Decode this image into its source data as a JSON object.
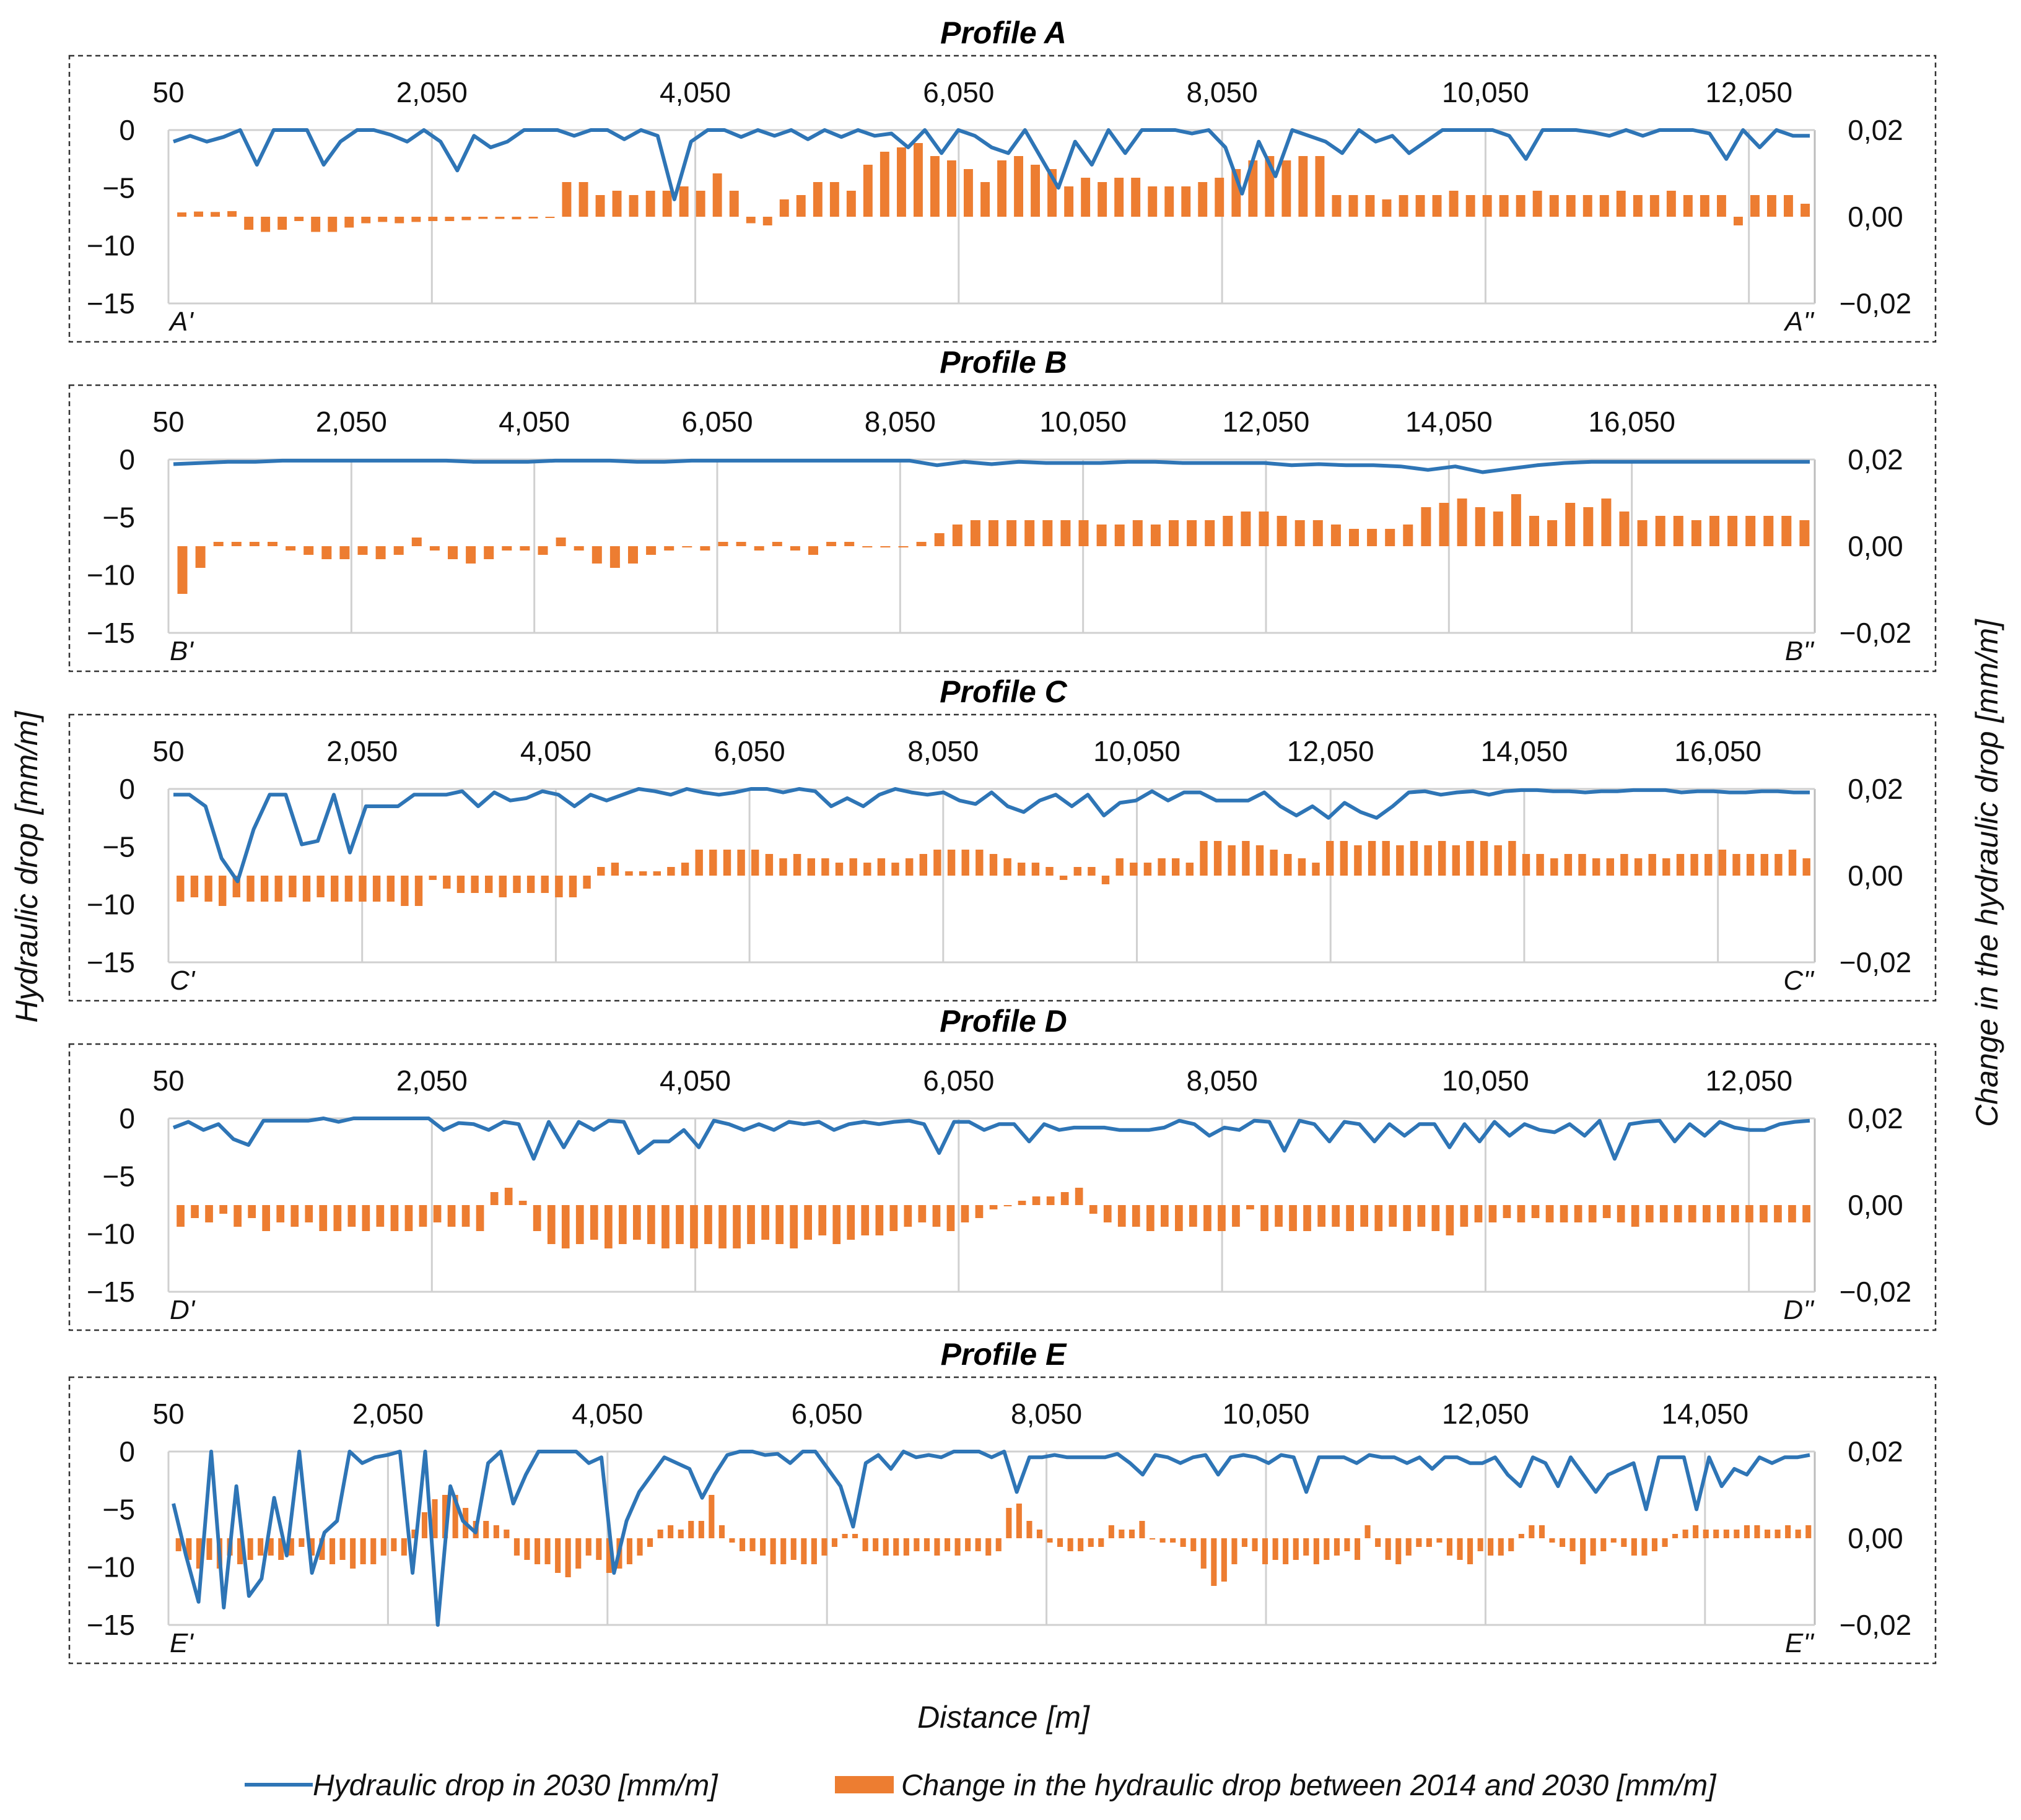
{
  "figure": {
    "left_axis_title": "Hydraulic drop [mm/m]",
    "right_axis_title": "Change in the hydraulic drop [mm/m]",
    "x_axis_title": "Distance [m]",
    "legend": [
      {
        "label": "Hydraulic drop in 2030 [mm/m]",
        "kind": "line",
        "color": "#2e75b6"
      },
      {
        "label": "Change in the hydraulic drop between 2014 and 2030 [mm/m]",
        "kind": "bar",
        "color": "#ed7d31"
      }
    ]
  },
  "chart_data": [
    {
      "type": "line+bar",
      "title": "Profile A",
      "start_label": "A'",
      "end_label": "A''",
      "xlim": [
        50,
        12550
      ],
      "xticks": [
        "50",
        "2,050",
        "4,050",
        "6,050",
        "8,050",
        "10,050",
        "12,050"
      ],
      "y_left": {
        "range": [
          -15,
          0
        ],
        "ticks": [
          "0",
          "-5",
          "-10",
          "-15"
        ]
      },
      "y_right": {
        "range": [
          -0.02,
          0.02
        ],
        "ticks": [
          "0,02",
          "0,00",
          "-0,02"
        ]
      },
      "line_series": [
        -1,
        -0.5,
        -1,
        -0.6,
        0,
        -3,
        0,
        0,
        0,
        -3,
        -1,
        0,
        0,
        -0.4,
        -1,
        0,
        -1,
        -3.5,
        -0.5,
        -1.5,
        -1,
        0,
        0,
        0,
        -0.5,
        0,
        0,
        -0.8,
        0,
        -0.5,
        -6,
        -1,
        0,
        0,
        -0.6,
        0,
        -0.5,
        0,
        -0.8,
        0,
        -0.6,
        0,
        -0.5,
        -0.3,
        -1.5,
        0,
        -2,
        0,
        -0.5,
        -1.5,
        -2,
        0,
        -2.5,
        -5,
        -1,
        -3,
        0,
        -2,
        0,
        0,
        0,
        -0.3,
        0,
        -1.5,
        -5.5,
        -1,
        -4,
        0,
        -0.5,
        -1,
        -2,
        0,
        -1,
        -0.5,
        -2,
        -1,
        0,
        0,
        0,
        0,
        -0.5,
        -2.5,
        0,
        0,
        0,
        -0.2,
        -0.5,
        0,
        -0.5,
        0,
        0,
        0,
        -0.3,
        -2.5,
        0,
        -1.5,
        0,
        -0.5,
        -0.5
      ],
      "bar_series": [
        0.001,
        0.0012,
        0.0011,
        0.0013,
        -0.003,
        -0.0035,
        -0.003,
        -0.001,
        -0.0035,
        -0.0035,
        -0.0025,
        -0.0015,
        -0.0012,
        -0.0015,
        -0.0012,
        -0.001,
        -0.001,
        -0.0008,
        -0.0005,
        -0.0005,
        -0.0006,
        -0.0004,
        -0.0002,
        0.008,
        0.008,
        0.005,
        0.006,
        0.005,
        0.006,
        0.006,
        0.007,
        0.006,
        0.01,
        0.006,
        -0.0015,
        -0.002,
        0.004,
        0.005,
        0.008,
        0.008,
        0.006,
        0.012,
        0.015,
        0.016,
        0.017,
        0.014,
        0.013,
        0.011,
        0.008,
        0.013,
        0.014,
        0.012,
        0.011,
        0.007,
        0.009,
        0.008,
        0.009,
        0.009,
        0.007,
        0.007,
        0.007,
        0.008,
        0.009,
        0.011,
        0.013,
        0.014,
        0.013,
        0.014,
        0.014,
        0.005,
        0.005,
        0.005,
        0.004,
        0.005,
        0.005,
        0.005,
        0.006,
        0.005,
        0.005,
        0.005,
        0.005,
        0.006,
        0.005,
        0.005,
        0.005,
        0.005,
        0.006,
        0.005,
        0.005,
        0.006,
        0.005,
        0.005,
        0.005,
        -0.002,
        0.005,
        0.005,
        0.005,
        0.003
      ]
    },
    {
      "type": "line+bar",
      "title": "Profile B",
      "start_label": "B'",
      "end_label": "B''",
      "xlim": [
        50,
        18050
      ],
      "xticks": [
        "50",
        "2,050",
        "4,050",
        "6,050",
        "8,050",
        "10,050",
        "12,050",
        "14,050",
        "16,050"
      ],
      "y_left": {
        "range": [
          -15,
          0
        ],
        "ticks": [
          "0",
          "-5",
          "-10",
          "-15"
        ]
      },
      "y_right": {
        "range": [
          -0.02,
          0.02
        ],
        "ticks": [
          "0,02",
          "0,00",
          "-0,02"
        ]
      },
      "line_series": [
        -0.4,
        -0.3,
        -0.2,
        -0.2,
        -0.1,
        -0.1,
        -0.1,
        -0.1,
        -0.1,
        -0.1,
        -0.1,
        -0.2,
        -0.2,
        -0.2,
        -0.1,
        -0.1,
        -0.1,
        -0.2,
        -0.2,
        -0.1,
        -0.1,
        -0.1,
        -0.1,
        -0.1,
        -0.1,
        -0.1,
        -0.1,
        -0.1,
        -0.5,
        -0.2,
        -0.4,
        -0.2,
        -0.3,
        -0.3,
        -0.3,
        -0.2,
        -0.2,
        -0.3,
        -0.3,
        -0.3,
        -0.3,
        -0.5,
        -0.4,
        -0.5,
        -0.5,
        -0.6,
        -0.9,
        -0.6,
        -1.1,
        -0.8,
        -0.5,
        -0.3,
        -0.2,
        -0.2,
        -0.2,
        -0.2,
        -0.2,
        -0.2,
        -0.2,
        -0.2,
        -0.2
      ],
      "bar_series": [
        -0.011,
        -0.005,
        0.001,
        0.001,
        0.001,
        0.001,
        -0.001,
        -0.002,
        -0.003,
        -0.003,
        -0.002,
        -0.003,
        -0.002,
        0.002,
        -0.001,
        -0.003,
        -0.004,
        -0.003,
        -0.001,
        -0.001,
        -0.002,
        0.002,
        -0.001,
        -0.004,
        -0.005,
        -0.004,
        -0.002,
        -0.001,
        0.0,
        -0.001,
        0.001,
        0.001,
        -0.001,
        0.001,
        -0.001,
        -0.002,
        0.001,
        0.001,
        0.0,
        0.0,
        0.0,
        0.001,
        0.003,
        0.005,
        0.006,
        0.006,
        0.006,
        0.006,
        0.006,
        0.006,
        0.006,
        0.005,
        0.005,
        0.006,
        0.005,
        0.006,
        0.006,
        0.006,
        0.007,
        0.008,
        0.008,
        0.007,
        0.006,
        0.006,
        0.005,
        0.004,
        0.004,
        0.004,
        0.005,
        0.009,
        0.01,
        0.011,
        0.009,
        0.008,
        0.012,
        0.007,
        0.006,
        0.01,
        0.009,
        0.011,
        0.008,
        0.006,
        0.007,
        0.007,
        0.006,
        0.007,
        0.007,
        0.007,
        0.007,
        0.007,
        0.006
      ]
    },
    {
      "type": "line+bar",
      "title": "Profile C",
      "start_label": "C'",
      "end_label": "C''",
      "xlim": [
        50,
        17050
      ],
      "xticks": [
        "50",
        "2,050",
        "4,050",
        "6,050",
        "8,050",
        "10,050",
        "12,050",
        "14,050",
        "16,050"
      ],
      "y_left": {
        "range": [
          -15,
          0
        ],
        "ticks": [
          "0",
          "-5",
          "-10",
          "-15"
        ]
      },
      "y_right": {
        "range": [
          -0.02,
          0.02
        ],
        "ticks": [
          "0,02",
          "0,00",
          "-0,02"
        ]
      },
      "line_series": [
        -0.5,
        -0.5,
        -1.5,
        -6,
        -8,
        -3.5,
        -0.5,
        -0.5,
        -4.8,
        -4.5,
        -0.5,
        -5.5,
        -1.5,
        -1.5,
        -1.5,
        -0.5,
        -0.5,
        -0.5,
        -0.2,
        -1.5,
        -0.3,
        -1,
        -0.8,
        -0.2,
        -0.5,
        -1.5,
        -0.5,
        -1,
        -0.5,
        0,
        -0.2,
        -0.5,
        0,
        -0.3,
        -0.5,
        -0.3,
        0,
        0,
        -0.3,
        0,
        -0.2,
        -1.5,
        -0.8,
        -1.5,
        -0.5,
        0,
        -0.3,
        -0.5,
        -0.3,
        -1,
        -1.3,
        -0.3,
        -1.5,
        -2,
        -1,
        -0.5,
        -1.5,
        -0.5,
        -2.3,
        -1.2,
        -1,
        -0.2,
        -1,
        -0.3,
        -0.3,
        -1,
        -1,
        -1,
        -0.3,
        -1.5,
        -2.3,
        -1.5,
        -2.5,
        -1.2,
        -2,
        -2.5,
        -1.5,
        -0.3,
        -0.2,
        -0.5,
        -0.3,
        -0.2,
        -0.5,
        -0.2,
        -0.1,
        -0.1,
        -0.2,
        -0.2,
        -0.3,
        -0.2,
        -0.2,
        -0.1,
        -0.1,
        -0.1,
        -0.3,
        -0.2,
        -0.2,
        -0.3,
        -0.3,
        -0.2,
        -0.2,
        -0.3,
        -0.3
      ],
      "bar_series": [
        -0.006,
        -0.005,
        -0.006,
        -0.007,
        -0.005,
        -0.006,
        -0.006,
        -0.006,
        -0.005,
        -0.006,
        -0.005,
        -0.006,
        -0.006,
        -0.006,
        -0.006,
        -0.006,
        -0.007,
        -0.007,
        -0.001,
        -0.003,
        -0.004,
        -0.004,
        -0.004,
        -0.005,
        -0.004,
        -0.004,
        -0.004,
        -0.005,
        -0.005,
        -0.003,
        0.002,
        0.003,
        0.001,
        0.001,
        0.001,
        0.002,
        0.003,
        0.006,
        0.006,
        0.006,
        0.006,
        0.006,
        0.005,
        0.004,
        0.005,
        0.004,
        0.004,
        0.003,
        0.004,
        0.003,
        0.004,
        0.003,
        0.004,
        0.005,
        0.006,
        0.006,
        0.006,
        0.006,
        0.005,
        0.004,
        0.003,
        0.003,
        0.002,
        -0.001,
        0.002,
        0.002,
        -0.002,
        0.004,
        0.003,
        0.003,
        0.004,
        0.004,
        0.003,
        0.008,
        0.008,
        0.007,
        0.008,
        0.007,
        0.006,
        0.005,
        0.004,
        0.003,
        0.008,
        0.008,
        0.007,
        0.008,
        0.008,
        0.007,
        0.008,
        0.007,
        0.008,
        0.007,
        0.008,
        0.008,
        0.007,
        0.008,
        0.005,
        0.005,
        0.004,
        0.005,
        0.005,
        0.004,
        0.004,
        0.005,
        0.004,
        0.005,
        0.004,
        0.005,
        0.005,
        0.005,
        0.006,
        0.005,
        0.005,
        0.005,
        0.005,
        0.006,
        0.004
      ]
    },
    {
      "type": "line+bar",
      "title": "Profile D",
      "start_label": "D'",
      "end_label": "D''",
      "xlim": [
        50,
        12550
      ],
      "xticks": [
        "50",
        "2,050",
        "4,050",
        "6,050",
        "8,050",
        "10,050",
        "12,050"
      ],
      "y_left": {
        "range": [
          -15,
          0
        ],
        "ticks": [
          "0",
          "-5",
          "-10",
          "-15"
        ]
      },
      "y_right": {
        "range": [
          -0.02,
          0.02
        ],
        "ticks": [
          "0,02",
          "0,00",
          "-0,02"
        ]
      },
      "line_series": [
        -0.8,
        -0.3,
        -1,
        -0.5,
        -1.8,
        -2.3,
        -0.2,
        -0.2,
        -0.2,
        -0.2,
        0,
        -0.3,
        0,
        0,
        0,
        0,
        0,
        0,
        -1,
        -0.4,
        -0.5,
        -1,
        -0.3,
        -0.5,
        -3.5,
        -0.3,
        -2.5,
        -0.3,
        -1,
        -0.2,
        -0.3,
        -3,
        -2,
        -2,
        -1,
        -2.5,
        -0.2,
        -0.5,
        -1,
        -0.5,
        -1,
        -0.3,
        -0.5,
        -0.3,
        -1,
        -0.5,
        -0.3,
        -0.5,
        -0.3,
        -0.2,
        -0.5,
        -3,
        -0.3,
        -0.3,
        -1,
        -0.5,
        -0.5,
        -2,
        -0.5,
        -1,
        -0.8,
        -0.8,
        -0.8,
        -1,
        -1,
        -1,
        -0.8,
        -0.2,
        -0.5,
        -1.5,
        -0.8,
        -1,
        -0.2,
        -0.3,
        -2.8,
        -0.2,
        -0.5,
        -2,
        -0.3,
        -0.5,
        -2,
        -0.5,
        -1.5,
        -0.5,
        -0.5,
        -2.5,
        -0.5,
        -2,
        -0.3,
        -1.5,
        -0.5,
        -1,
        -1.2,
        -0.5,
        -1.5,
        -0.2,
        -3.5,
        -0.5,
        -0.3,
        -0.2,
        -2,
        -0.5,
        -1.5,
        -0.3,
        -0.8,
        -1,
        -1,
        -0.5,
        -0.3,
        -0.2
      ],
      "bar_series": [
        -0.005,
        -0.003,
        -0.004,
        -0.002,
        -0.005,
        -0.003,
        -0.006,
        -0.004,
        -0.005,
        -0.004,
        -0.006,
        -0.006,
        -0.005,
        -0.006,
        -0.005,
        -0.006,
        -0.006,
        -0.005,
        -0.004,
        -0.005,
        -0.005,
        -0.006,
        0.003,
        0.004,
        0.001,
        -0.006,
        -0.009,
        -0.01,
        -0.009,
        -0.008,
        -0.01,
        -0.009,
        -0.008,
        -0.009,
        -0.01,
        -0.009,
        -0.01,
        -0.009,
        -0.01,
        -0.01,
        -0.009,
        -0.008,
        -0.009,
        -0.01,
        -0.008,
        -0.007,
        -0.009,
        -0.008,
        -0.007,
        -0.007,
        -0.006,
        -0.005,
        -0.004,
        -0.005,
        -0.006,
        -0.004,
        -0.003,
        -0.001,
        0.0,
        0.001,
        0.002,
        0.002,
        0.003,
        0.004,
        -0.002,
        -0.004,
        -0.005,
        -0.005,
        -0.006,
        -0.005,
        -0.006,
        -0.005,
        -0.006,
        -0.006,
        -0.005,
        -0.001,
        -0.006,
        -0.005,
        -0.006,
        -0.006,
        -0.005,
        -0.005,
        -0.006,
        -0.005,
        -0.006,
        -0.005,
        -0.006,
        -0.005,
        -0.006,
        -0.007,
        -0.005,
        -0.004,
        -0.004,
        -0.003,
        -0.004,
        -0.003,
        -0.004,
        -0.004,
        -0.004,
        -0.004,
        -0.003,
        -0.004,
        -0.005,
        -0.004,
        -0.004,
        -0.004,
        -0.004,
        -0.004,
        -0.004,
        -0.004,
        -0.004,
        -0.004,
        -0.004,
        -0.004,
        -0.004
      ]
    },
    {
      "type": "line+bar",
      "title": "Profile E",
      "start_label": "E'",
      "end_label": "E''",
      "xlim": [
        50,
        15050
      ],
      "xticks": [
        "50",
        "2,050",
        "4,050",
        "6,050",
        "8,050",
        "10,050",
        "12,050",
        "14,050"
      ],
      "y_left": {
        "range": [
          -15,
          0
        ],
        "ticks": [
          "0",
          "-5",
          "-10",
          "-15"
        ]
      },
      "y_right": {
        "range": [
          -0.02,
          0.02
        ],
        "ticks": [
          "0,02",
          "0,00",
          "-0,02"
        ]
      },
      "line_series": [
        -4.5,
        -9,
        -13,
        0,
        -13.5,
        -3,
        -12.5,
        -11,
        -4,
        -9,
        0,
        -10.5,
        -7,
        -6,
        0,
        -1,
        -0.5,
        -0.3,
        0,
        -10.5,
        0,
        -15,
        -3,
        -6,
        -7,
        -1,
        0,
        -4.5,
        -2,
        0,
        0,
        0,
        0,
        -1,
        -0.5,
        -10.5,
        -6,
        -3.5,
        -2,
        -0.5,
        -1,
        -1.5,
        -4,
        -2,
        -0.3,
        0,
        0,
        -0.3,
        -0.2,
        -1,
        0,
        0,
        -1.5,
        -3,
        -6.5,
        -1,
        -0.3,
        -1.5,
        0,
        -0.5,
        -0.3,
        -0.5,
        0,
        0,
        0,
        -0.5,
        0,
        -3.5,
        -0.5,
        -0.5,
        -0.3,
        -0.5,
        -0.5,
        -0.5,
        -0.5,
        -0.2,
        -1,
        -2,
        -0.3,
        -0.5,
        -1,
        -0.5,
        -0.3,
        -2,
        -0.5,
        -0.3,
        -0.5,
        -1,
        -0.3,
        -0.5,
        -3.5,
        -0.5,
        -0.5,
        -0.5,
        -1,
        -0.3,
        -0.5,
        -0.5,
        -1,
        -0.5,
        -1.5,
        -0.5,
        -0.5,
        -1,
        -1,
        -0.5,
        -2,
        -3,
        -0.5,
        -1,
        -3,
        -0.5,
        -2,
        -3.5,
        -2,
        -1.5,
        -1,
        -5,
        -0.5,
        -0.5,
        -0.5,
        -5,
        -0.5,
        -3,
        -1.5,
        -2,
        -0.5,
        -1,
        -0.5,
        -0.5,
        -0.3
      ],
      "bar_series": [
        -0.003,
        -0.005,
        -0.007,
        -0.005,
        -0.007,
        -0.004,
        -0.006,
        -0.005,
        -0.004,
        -0.004,
        -0.005,
        -0.004,
        -0.002,
        -0.004,
        -0.005,
        -0.006,
        -0.005,
        -0.007,
        -0.006,
        -0.006,
        -0.004,
        -0.003,
        -0.004,
        0.002,
        0.006,
        0.009,
        0.01,
        0.01,
        0.007,
        0.004,
        0.004,
        0.003,
        0.002,
        -0.004,
        -0.005,
        -0.006,
        -0.006,
        -0.008,
        -0.009,
        -0.007,
        -0.004,
        -0.005,
        -0.008,
        -0.007,
        -0.006,
        -0.004,
        -0.002,
        0.002,
        0.003,
        0.002,
        0.004,
        0.004,
        0.01,
        0.003,
        -0.001,
        -0.003,
        -0.003,
        -0.004,
        -0.006,
        -0.006,
        -0.005,
        -0.006,
        -0.006,
        -0.004,
        -0.002,
        0.001,
        0.001,
        -0.003,
        -0.003,
        -0.004,
        -0.004,
        -0.004,
        -0.003,
        -0.003,
        -0.004,
        -0.003,
        -0.004,
        -0.003,
        -0.003,
        -0.004,
        -0.003,
        0.007,
        0.008,
        0.004,
        0.002,
        -0.001,
        -0.002,
        -0.003,
        -0.003,
        -0.002,
        -0.002,
        0.003,
        0.002,
        0.002,
        0.004,
        0.0,
        -0.001,
        -0.001,
        -0.002,
        -0.003,
        -0.007,
        -0.011,
        -0.01,
        -0.006,
        -0.002,
        -0.003,
        -0.006,
        -0.005,
        -0.006,
        -0.005,
        -0.004,
        -0.006,
        -0.005,
        -0.004,
        -0.003,
        -0.005,
        0.003,
        -0.002,
        -0.005,
        -0.006,
        -0.004,
        -0.002,
        -0.002,
        -0.001,
        -0.004,
        -0.005,
        -0.006,
        -0.003,
        -0.004,
        -0.004,
        -0.003,
        0.001,
        0.003,
        0.003,
        -0.001,
        -0.002,
        -0.003,
        -0.006,
        -0.004,
        -0.003,
        -0.001,
        -0.002,
        -0.004,
        -0.004,
        -0.003,
        -0.002,
        0.001,
        0.002,
        0.003,
        0.002,
        0.002,
        0.002,
        0.002,
        0.003,
        0.003,
        0.002,
        0.002,
        0.003,
        0.002,
        0.003
      ]
    }
  ]
}
